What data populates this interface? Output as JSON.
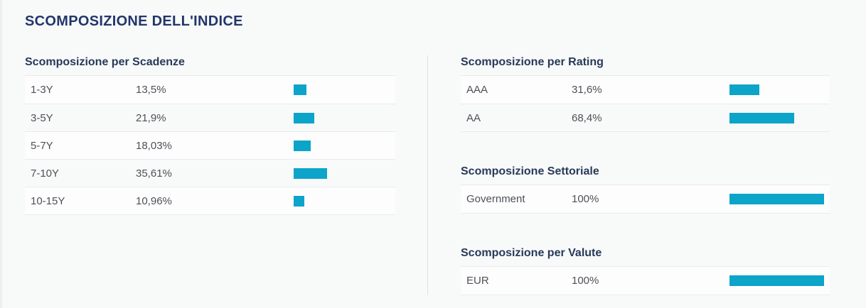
{
  "page_title": "SCOMPOSIZIONE DELL'INDICE",
  "colors": {
    "bar": "#0ca4c8",
    "title_navy": "#22366b",
    "section_navy": "#273a59",
    "row_text": "#4d5156",
    "background": "#f8f9f9",
    "row_highlight": "#fdfdfe",
    "border": "#e9ebec"
  },
  "sections": {
    "maturity": {
      "title": "Scomposizione per Scadenze",
      "rows": [
        {
          "label": "1-3Y",
          "value": "13,5%",
          "pct": 13.5
        },
        {
          "label": "3-5Y",
          "value": "21,9%",
          "pct": 21.9
        },
        {
          "label": "5-7Y",
          "value": "18,03%",
          "pct": 18.03
        },
        {
          "label": "7-10Y",
          "value": "35,61%",
          "pct": 35.61
        },
        {
          "label": "10-15Y",
          "value": "10,96%",
          "pct": 10.96
        }
      ]
    },
    "rating": {
      "title": "Scomposizione per Rating",
      "rows": [
        {
          "label": "AAA",
          "value": "31,6%",
          "pct": 31.6
        },
        {
          "label": "AA",
          "value": "68,4%",
          "pct": 68.4
        }
      ]
    },
    "sector": {
      "title": "Scomposizione Settoriale",
      "rows": [
        {
          "label": "Government",
          "value": "100%",
          "pct": 100
        }
      ]
    },
    "currency": {
      "title": "Scomposizione per Valute",
      "rows": [
        {
          "label": "EUR",
          "value": "100%",
          "pct": 100
        }
      ]
    }
  },
  "chart_data": [
    {
      "type": "bar",
      "orientation": "horizontal",
      "title": "Scomposizione per Scadenze",
      "categories": [
        "1-3Y",
        "3-5Y",
        "5-7Y",
        "7-10Y",
        "10-15Y"
      ],
      "values": [
        13.5,
        21.9,
        18.03,
        35.61,
        10.96
      ],
      "value_labels": [
        "13,5%",
        "21,9%",
        "18,03%",
        "35,61%",
        "10,96%"
      ],
      "xlabel": "",
      "ylabel": "",
      "xlim": [
        0,
        100
      ],
      "grid": false,
      "legend": false,
      "bar_color": "#0ca4c8"
    },
    {
      "type": "bar",
      "orientation": "horizontal",
      "title": "Scomposizione per Rating",
      "categories": [
        "AAA",
        "AA"
      ],
      "values": [
        31.6,
        68.4
      ],
      "value_labels": [
        "31,6%",
        "68,4%"
      ],
      "xlabel": "",
      "ylabel": "",
      "xlim": [
        0,
        100
      ],
      "grid": false,
      "legend": false,
      "bar_color": "#0ca4c8"
    },
    {
      "type": "bar",
      "orientation": "horizontal",
      "title": "Scomposizione Settoriale",
      "categories": [
        "Government"
      ],
      "values": [
        100
      ],
      "value_labels": [
        "100%"
      ],
      "xlabel": "",
      "ylabel": "",
      "xlim": [
        0,
        100
      ],
      "grid": false,
      "legend": false,
      "bar_color": "#0ca4c8"
    },
    {
      "type": "bar",
      "orientation": "horizontal",
      "title": "Scomposizione per Valute",
      "categories": [
        "EUR"
      ],
      "values": [
        100
      ],
      "value_labels": [
        "100%"
      ],
      "xlabel": "",
      "ylabel": "",
      "xlim": [
        0,
        100
      ],
      "grid": false,
      "legend": false,
      "bar_color": "#0ca4c8"
    }
  ]
}
